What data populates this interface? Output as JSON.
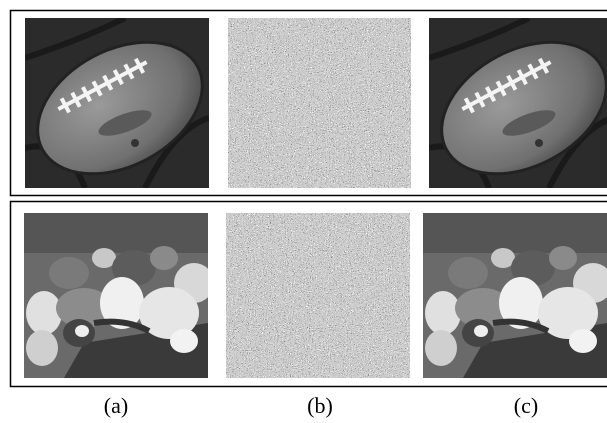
{
  "figure": {
    "labels": [
      "(a)",
      "(b)",
      "(c)"
    ]
  }
}
